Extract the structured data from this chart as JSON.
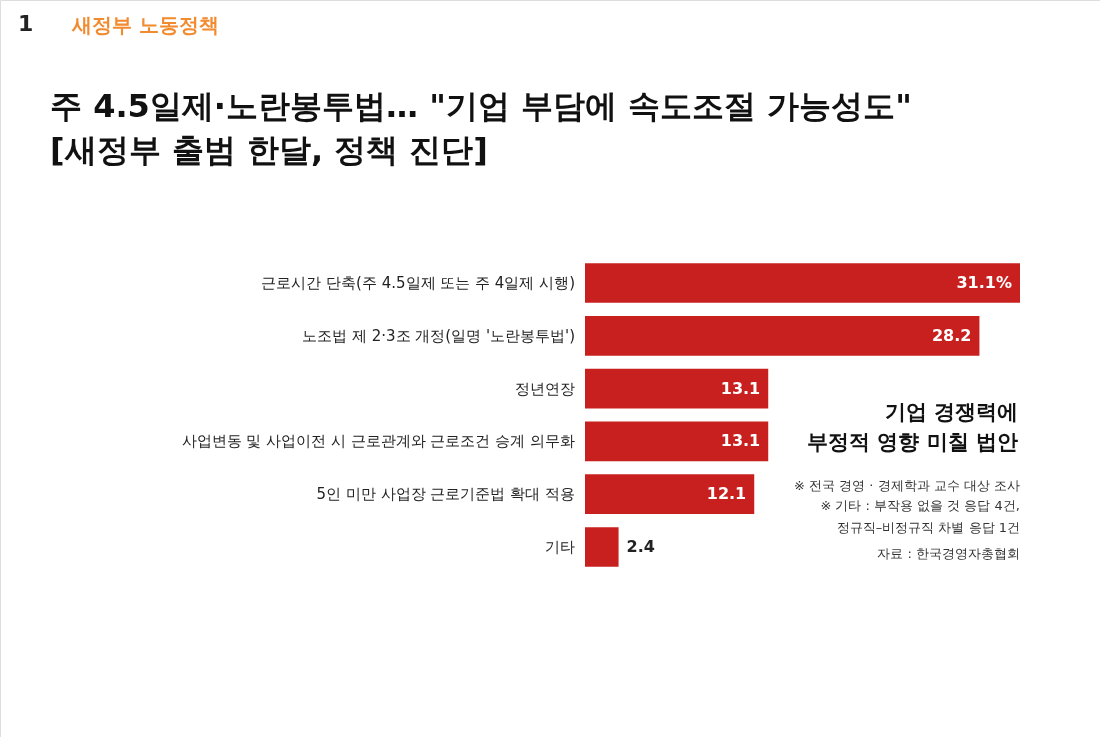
{
  "chart_data": {
    "type": "bar",
    "orientation": "horizontal",
    "title": "주 4.5일제·노란봉투법… \"기업 부담에 속도조절 가능성도\"\n[새정부 출범 한달, 정책 진단]",
    "subtitle": "기업 경쟁력에\n부정적 영향 미칠 법안",
    "categories": [
      "근로시간 단축(주 4.5일제 또는 주 4일제 시행)",
      "노조법 제 2·3조 개정(일명 '노란봉투법')",
      "정년연장",
      "사업변동 및 사업이전 시 근로관계와 근로조건 승계 의무화",
      "5인 미만 사업장 근로기준법 확대 적용",
      "기타"
    ],
    "values": [
      31.1,
      28.2,
      13.1,
      13.1,
      12.1,
      2.4
    ],
    "value_labels": [
      "31.1%",
      "28.2",
      "13.1",
      "13.1",
      "12.1",
      "2.4"
    ],
    "color": "#c8201f",
    "annotations": [
      "1",
      "새정부 노동정책",
      "※ 전국 경영 · 경제학과 교수 대상 조사",
      "※ 기타 : 부작용 없을 것 응답 4건,\n정규직–비정규직 차별 응답 1건",
      "자료 : 한국경영자총협회"
    ]
  }
}
